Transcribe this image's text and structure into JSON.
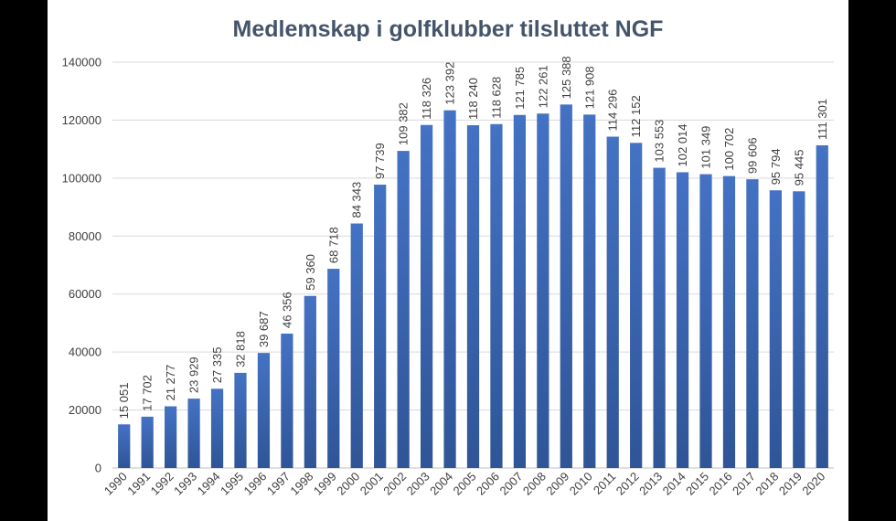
{
  "chart_data": {
    "type": "bar",
    "title": "Medlemskap i golfklubber tilsluttet NGF",
    "xlabel": "",
    "ylabel": "",
    "ylim": [
      0,
      140000
    ],
    "yticks": [
      0,
      20000,
      40000,
      60000,
      80000,
      100000,
      120000,
      140000
    ],
    "yticklabels": [
      "0",
      "20000",
      "40000",
      "60000",
      "80000",
      "100000",
      "120000",
      "140000"
    ],
    "grid": true,
    "legend": "none",
    "bar_color_top": "#4472c4",
    "bar_color_bottom": "#2f5597",
    "categories": [
      "1990",
      "1991",
      "1992",
      "1993",
      "1994",
      "1995",
      "1996",
      "1997",
      "1998",
      "1999",
      "2000",
      "2001",
      "2002",
      "2003",
      "2004",
      "2005",
      "2006",
      "2007",
      "2008",
      "2009",
      "2010",
      "2011",
      "2012",
      "2013",
      "2014",
      "2015",
      "2016",
      "2017",
      "2018",
      "2019",
      "2020"
    ],
    "values": [
      15051,
      17702,
      21277,
      23929,
      27335,
      32818,
      39687,
      46356,
      59360,
      68718,
      84343,
      97739,
      109382,
      118326,
      123392,
      118240,
      118628,
      121785,
      122261,
      125388,
      121908,
      114296,
      112152,
      103553,
      102014,
      101349,
      100702,
      99606,
      95794,
      95445,
      111301
    ],
    "data_labels": [
      "15 051",
      "17 702",
      "21 277",
      "23 929",
      "27 335",
      "32 818",
      "39 687",
      "46 356",
      "59 360",
      "68 718",
      "84 343",
      "97 739",
      "109 382",
      "118 326",
      "123 392",
      "118 240",
      "118 628",
      "121 785",
      "122 261",
      "125 388",
      "121 908",
      "114 296",
      "112 152",
      "103 553",
      "102 014",
      "101 349",
      "100 702",
      "99 606",
      "95 794",
      "95 445",
      "111 301"
    ]
  }
}
